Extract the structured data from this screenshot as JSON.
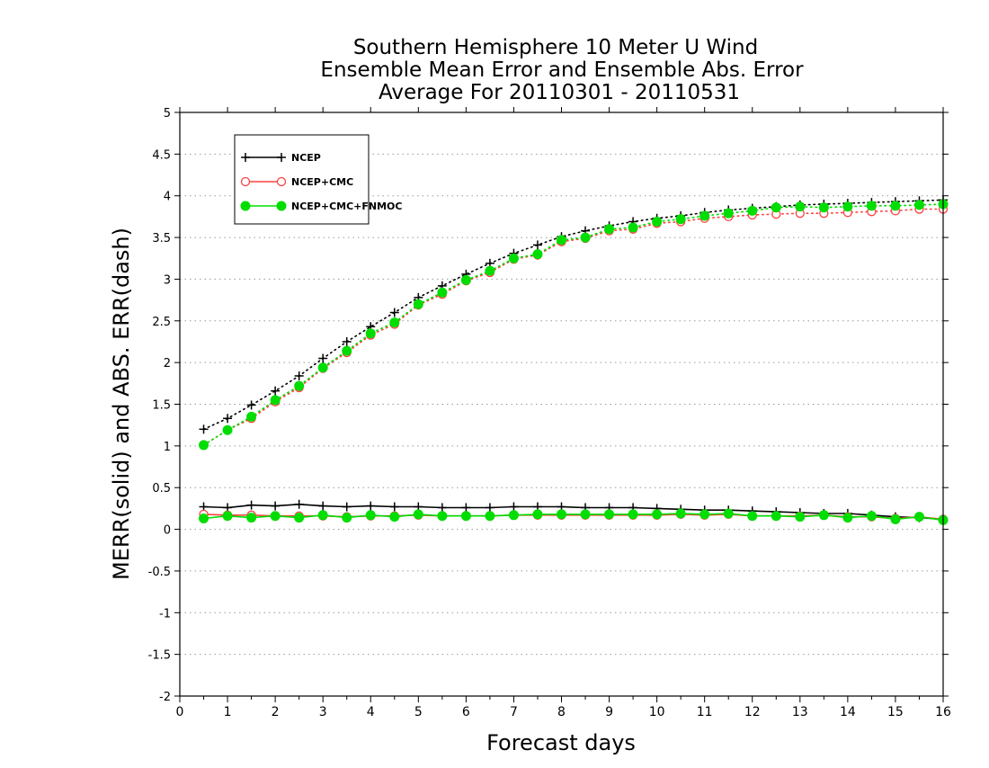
{
  "chart_data": {
    "type": "line",
    "title": [
      "Southern Hemisphere 10 Meter U Wind",
      "Ensemble Mean Error and Ensemble Abs. Error",
      "Average For 20110301 - 20110531"
    ],
    "xlabel": "Forecast days",
    "ylabel": "MERR(solid) and ABS. ERR(dash)",
    "xlim": [
      0,
      16
    ],
    "ylim": [
      -2,
      5
    ],
    "xticks": [
      "0",
      "1",
      "2",
      "3",
      "4",
      "5",
      "6",
      "7",
      "8",
      "9",
      "10",
      "11",
      "12",
      "13",
      "14",
      "15",
      "16"
    ],
    "yticks": [
      "-2",
      "-1.5",
      "-1",
      "-0.5",
      "0",
      "0.5",
      "1",
      "1.5",
      "2",
      "2.5",
      "3",
      "3.5",
      "4",
      "4.5",
      "5"
    ],
    "grid": "horizontal dotted",
    "legend_position": "top-left",
    "x": [
      0.5,
      1,
      1.5,
      2,
      2.5,
      3,
      3.5,
      4,
      4.5,
      5,
      5.5,
      6,
      6.5,
      7,
      7.5,
      8,
      8.5,
      9,
      9.5,
      10,
      10.5,
      11,
      11.5,
      12,
      12.5,
      13,
      13.5,
      14,
      14.5,
      15,
      15.5,
      16
    ],
    "series": [
      {
        "name": "NCEP",
        "color": "#000000",
        "marker": "plus",
        "merr": [
          0.27,
          0.26,
          0.29,
          0.28,
          0.3,
          0.28,
          0.27,
          0.28,
          0.27,
          0.27,
          0.26,
          0.26,
          0.26,
          0.27,
          0.27,
          0.27,
          0.26,
          0.26,
          0.26,
          0.25,
          0.24,
          0.23,
          0.23,
          0.22,
          0.21,
          0.2,
          0.19,
          0.19,
          0.17,
          0.15,
          0.14,
          0.12
        ],
        "abs_err": [
          1.2,
          1.33,
          1.49,
          1.66,
          1.84,
          2.05,
          2.25,
          2.43,
          2.6,
          2.78,
          2.92,
          3.06,
          3.19,
          3.31,
          3.41,
          3.51,
          3.58,
          3.64,
          3.69,
          3.73,
          3.76,
          3.8,
          3.83,
          3.85,
          3.87,
          3.89,
          3.9,
          3.91,
          3.92,
          3.93,
          3.94,
          3.95
        ]
      },
      {
        "name": "NCEP+CMC",
        "color": "#ff4040",
        "marker": "open-circle",
        "merr": [
          0.18,
          0.17,
          0.17,
          0.16,
          0.16,
          0.16,
          0.15,
          0.16,
          0.16,
          0.17,
          0.16,
          0.16,
          0.16,
          0.17,
          0.17,
          0.17,
          0.17,
          0.17,
          0.17,
          0.17,
          0.18,
          0.17,
          0.18,
          0.16,
          0.16,
          0.16,
          0.17,
          0.15,
          0.15,
          0.13,
          0.15,
          0.12
        ],
        "abs_err": [
          1.01,
          1.19,
          1.33,
          1.53,
          1.7,
          1.93,
          2.12,
          2.33,
          2.46,
          2.69,
          2.82,
          2.98,
          3.08,
          3.24,
          3.29,
          3.45,
          3.49,
          3.58,
          3.6,
          3.67,
          3.69,
          3.73,
          3.75,
          3.77,
          3.78,
          3.79,
          3.79,
          3.8,
          3.81,
          3.82,
          3.84,
          3.84
        ]
      },
      {
        "name": "NCEP+CMC+FNMOC",
        "color": "#00dd00",
        "marker": "filled-circle",
        "merr": [
          0.13,
          0.16,
          0.14,
          0.16,
          0.14,
          0.17,
          0.14,
          0.17,
          0.15,
          0.18,
          0.16,
          0.16,
          0.16,
          0.17,
          0.18,
          0.18,
          0.18,
          0.18,
          0.18,
          0.18,
          0.19,
          0.18,
          0.19,
          0.16,
          0.16,
          0.15,
          0.17,
          0.14,
          0.16,
          0.12,
          0.15,
          0.11
        ],
        "abs_err": [
          1.01,
          1.19,
          1.35,
          1.55,
          1.72,
          1.94,
          2.14,
          2.35,
          2.48,
          2.7,
          2.84,
          2.99,
          3.1,
          3.25,
          3.3,
          3.47,
          3.5,
          3.6,
          3.62,
          3.69,
          3.72,
          3.76,
          3.79,
          3.82,
          3.86,
          3.87,
          3.86,
          3.87,
          3.88,
          3.88,
          3.89,
          3.9
        ]
      }
    ]
  }
}
